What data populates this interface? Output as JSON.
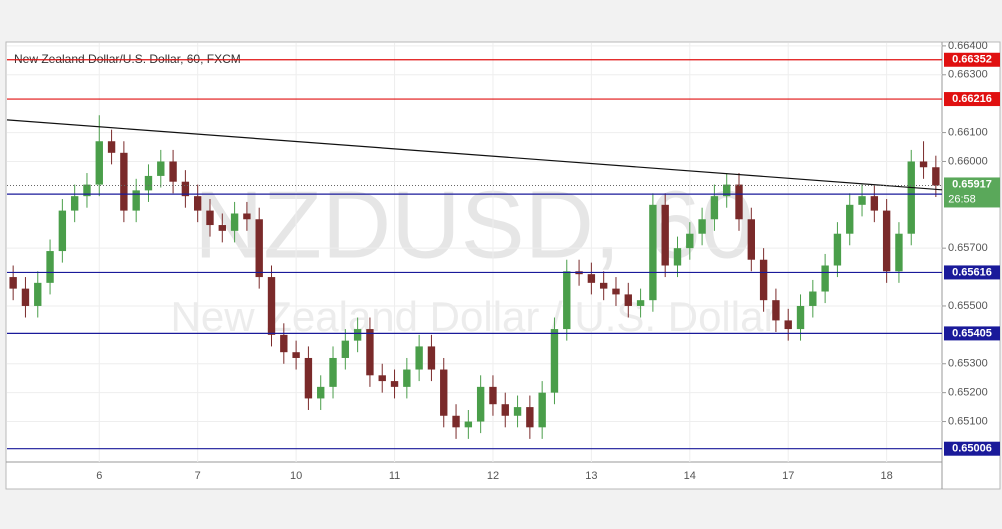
{
  "chart_data": {
    "type": "candlestick",
    "title": "New Zealand Dollar/U.S. Dollar, 60, FXCM",
    "watermark": "NZDUSD, 60",
    "watermark_subtitle": "New Zealand Dollar / U.S. Dollar",
    "categories": [
      null,
      null,
      null,
      null,
      null,
      null,
      null,
      "6",
      null,
      null,
      null,
      null,
      null,
      null,
      null,
      "7",
      null,
      null,
      null,
      null,
      null,
      null,
      null,
      "10",
      null,
      null,
      null,
      null,
      null,
      null,
      null,
      "11",
      null,
      null,
      null,
      null,
      null,
      null,
      null,
      "12",
      null,
      null,
      null,
      null,
      null,
      null,
      null,
      "13",
      null,
      null,
      null,
      null,
      null,
      null,
      null,
      "14",
      null,
      null,
      null,
      null,
      null,
      null,
      null,
      "17",
      null,
      null,
      null,
      null,
      null,
      null,
      null,
      "18",
      null,
      null,
      null,
      null
    ],
    "open": [
      0.656,
      0.6556,
      0.655,
      0.6558,
      0.6569,
      0.6583,
      0.6588,
      0.6592,
      0.6607,
      0.6603,
      0.6583,
      0.659,
      0.6595,
      0.66,
      0.6593,
      0.6588,
      0.6583,
      0.6578,
      0.6576,
      0.6582,
      0.658,
      0.656,
      0.654,
      0.6534,
      0.6532,
      0.6518,
      0.6522,
      0.6532,
      0.6538,
      0.6542,
      0.6526,
      0.6524,
      0.6522,
      0.6528,
      0.6536,
      0.6528,
      0.6512,
      0.6508,
      0.651,
      0.6522,
      0.6516,
      0.6512,
      0.6515,
      0.6508,
      0.652,
      0.6542,
      0.6562,
      0.6561,
      0.6558,
      0.6556,
      0.6554,
      0.655,
      0.6552,
      0.6585,
      0.6564,
      0.657,
      0.6575,
      0.658,
      0.6588,
      0.6592,
      0.658,
      0.6566,
      0.6552,
      0.6545,
      0.6542,
      0.655,
      0.6555,
      0.6564,
      0.6575,
      0.6585,
      0.6588,
      0.6583,
      0.6562,
      0.6575,
      0.66,
      0.6598
    ],
    "high": [
      0.6564,
      0.656,
      0.6562,
      0.6573,
      0.6587,
      0.6592,
      0.6596,
      0.6616,
      0.6611,
      0.6607,
      0.6594,
      0.6599,
      0.6604,
      0.6604,
      0.6597,
      0.6592,
      0.6587,
      0.6582,
      0.6586,
      0.6586,
      0.6584,
      0.6564,
      0.6544,
      0.6538,
      0.6536,
      0.6526,
      0.6536,
      0.6542,
      0.6546,
      0.6546,
      0.653,
      0.6528,
      0.6532,
      0.654,
      0.654,
      0.6532,
      0.6516,
      0.6514,
      0.6526,
      0.6526,
      0.652,
      0.6519,
      0.6519,
      0.6524,
      0.6546,
      0.6566,
      0.6566,
      0.6565,
      0.6562,
      0.656,
      0.6558,
      0.6556,
      0.6589,
      0.6589,
      0.6574,
      0.6579,
      0.6584,
      0.6592,
      0.6596,
      0.6596,
      0.6584,
      0.657,
      0.6556,
      0.6549,
      0.6554,
      0.6559,
      0.6568,
      0.6579,
      0.6589,
      0.6592,
      0.6592,
      0.6587,
      0.6579,
      0.6604,
      0.6607,
      0.6602
    ],
    "low": [
      0.6552,
      0.6546,
      0.6546,
      0.6554,
      0.6565,
      0.6579,
      0.6584,
      0.6588,
      0.6599,
      0.6579,
      0.6579,
      0.6586,
      0.6591,
      0.6589,
      0.6584,
      0.6579,
      0.6574,
      0.6572,
      0.6572,
      0.6576,
      0.6556,
      0.6536,
      0.653,
      0.6528,
      0.6514,
      0.6514,
      0.6518,
      0.6528,
      0.6534,
      0.6522,
      0.652,
      0.6518,
      0.6518,
      0.6524,
      0.6524,
      0.6508,
      0.6504,
      0.6504,
      0.6506,
      0.6512,
      0.6508,
      0.6508,
      0.6504,
      0.6504,
      0.6516,
      0.6538,
      0.6557,
      0.6554,
      0.6552,
      0.655,
      0.6546,
      0.6546,
      0.6548,
      0.656,
      0.656,
      0.6566,
      0.6571,
      0.6576,
      0.6584,
      0.6576,
      0.6562,
      0.6548,
      0.6541,
      0.6538,
      0.6538,
      0.6546,
      0.6551,
      0.656,
      0.6571,
      0.6581,
      0.6579,
      0.6558,
      0.6558,
      0.6571,
      0.6594,
      0.65877
    ],
    "close": [
      0.6556,
      0.655,
      0.6558,
      0.6569,
      0.6583,
      0.6588,
      0.6592,
      0.6607,
      0.6603,
      0.6583,
      0.659,
      0.6595,
      0.66,
      0.6593,
      0.6588,
      0.6583,
      0.6578,
      0.6576,
      0.6582,
      0.658,
      0.656,
      0.654,
      0.6534,
      0.6532,
      0.6518,
      0.6522,
      0.6532,
      0.6538,
      0.6542,
      0.6526,
      0.6524,
      0.6522,
      0.6528,
      0.6536,
      0.6528,
      0.6512,
      0.6508,
      0.651,
      0.6522,
      0.6516,
      0.6512,
      0.6515,
      0.6508,
      0.652,
      0.6542,
      0.6562,
      0.6561,
      0.6558,
      0.6556,
      0.6554,
      0.655,
      0.6552,
      0.6585,
      0.6564,
      0.657,
      0.6575,
      0.658,
      0.6588,
      0.6592,
      0.658,
      0.6566,
      0.6552,
      0.6545,
      0.6542,
      0.655,
      0.6555,
      0.6564,
      0.6575,
      0.6585,
      0.6588,
      0.6583,
      0.6562,
      0.6575,
      0.66,
      0.6598,
      0.65917
    ],
    "up_color": "#4a9e4a",
    "down_color": "#7a2a2a",
    "xlim": [
      -0.5,
      75.5
    ],
    "ylim": [
      0.6496,
      0.6641
    ],
    "yticks": [
      {
        "value": 0.664,
        "label": "0.66400"
      },
      {
        "value": 0.663,
        "label": "0.66300"
      },
      {
        "value": 0.661,
        "label": "0.66100"
      },
      {
        "value": 0.66,
        "label": "0.66000"
      },
      {
        "value": 0.657,
        "label": "0.65700"
      },
      {
        "value": 0.655,
        "label": "0.65500"
      },
      {
        "value": 0.653,
        "label": "0.65300"
      },
      {
        "value": 0.652,
        "label": "0.65200"
      },
      {
        "value": 0.651,
        "label": "0.65100"
      }
    ],
    "grid": true,
    "levels": [
      {
        "value": 0.66352,
        "color": "#e01010"
      },
      {
        "value": 0.66216,
        "color": "#e01010"
      },
      {
        "value": 0.65887,
        "color": "#1a1a9a"
      },
      {
        "value": 0.65616,
        "color": "#1a1a9a"
      },
      {
        "value": 0.65405,
        "color": "#1a1a9a"
      },
      {
        "value": 0.65006,
        "color": "#1a1a9a"
      }
    ],
    "trendline": {
      "x": [
        -0.5,
        75.5
      ],
      "y": [
        0.66144,
        0.65902
      ]
    },
    "last_price": 0.65917,
    "last_color": "#5aa85a",
    "countdown": "26:58"
  }
}
